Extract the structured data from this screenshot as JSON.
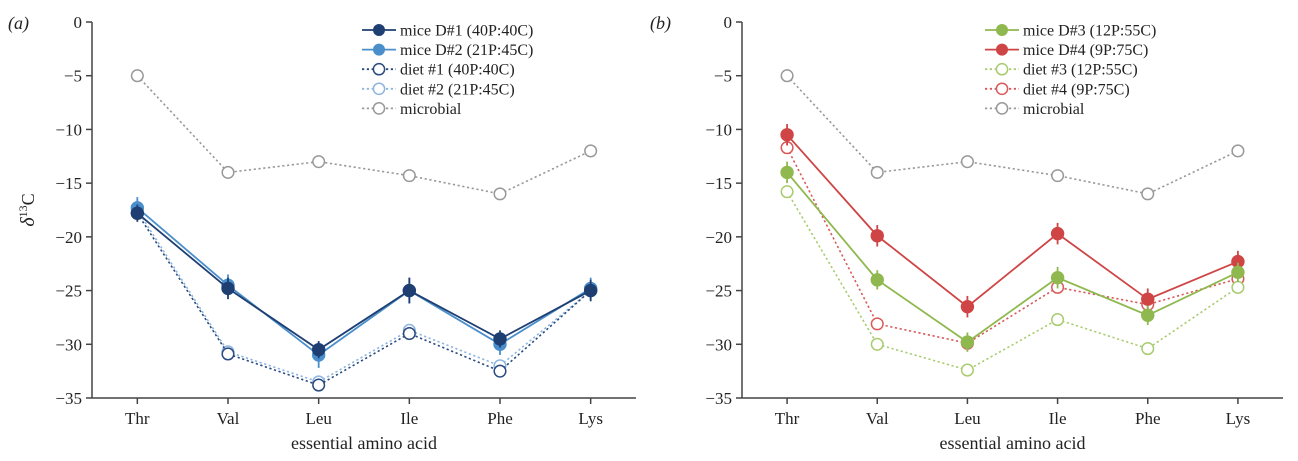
{
  "chart_data": [
    {
      "panel_label": "(a)",
      "type": "line",
      "ylabel": "δ13C",
      "ylabel_base": "δ",
      "ylabel_sup": "13",
      "ylabel_tail": "C",
      "xlabel": "essential amino acid",
      "categories": [
        "Thr",
        "Val",
        "Leu",
        "Ile",
        "Phe",
        "Lys"
      ],
      "ylim": [
        -35,
        0
      ],
      "yticks": [
        0,
        -5,
        -10,
        -15,
        -20,
        -25,
        -30,
        -35
      ],
      "ytick_labels": [
        "0",
        "−5",
        "−10",
        "−15",
        "−20",
        "−25",
        "−30",
        "−35"
      ],
      "legend_position": "top-right",
      "series": [
        {
          "name": "mice D#1 (40P:40C)",
          "values": [
            -17.8,
            -24.8,
            -30.5,
            -25.0,
            -29.5,
            -25.0
          ],
          "errors": [
            0.8,
            1.0,
            0.8,
            1.2,
            0.8,
            1.0
          ],
          "color": "#1f3f73",
          "style": "solid",
          "marker": "filled"
        },
        {
          "name": "mice D#2 (21P:45C)",
          "values": [
            -17.3,
            -24.5,
            -31.0,
            -25.0,
            -30.0,
            -24.8
          ],
          "errors": [
            1.0,
            1.0,
            1.2,
            1.2,
            1.0,
            1.0
          ],
          "color": "#4a8fcc",
          "style": "solid",
          "marker": "filled"
        },
        {
          "name": "diet #1 (40P:40C)",
          "values": [
            -17.8,
            -30.9,
            -33.8,
            -29.0,
            -32.5,
            -25.0
          ],
          "errors": [
            0.3,
            0.3,
            0.3,
            0.3,
            0.3,
            0.3
          ],
          "color": "#2a4a80",
          "style": "dotted",
          "marker": "open"
        },
        {
          "name": "diet #2 (21P:45C)",
          "values": [
            -17.5,
            -30.7,
            -33.5,
            -28.7,
            -32.0,
            -25.0
          ],
          "errors": [
            0.3,
            0.3,
            0.3,
            0.3,
            0.3,
            0.3
          ],
          "color": "#8db5de",
          "style": "dotted",
          "marker": "open"
        },
        {
          "name": "microbial",
          "values": [
            -5.0,
            -14.0,
            -13.0,
            -14.3,
            -16.0,
            -12.0
          ],
          "errors": [
            0,
            0,
            0,
            0,
            0,
            0
          ],
          "color": "#999999",
          "style": "dotted",
          "marker": "open"
        }
      ]
    },
    {
      "panel_label": "(b)",
      "type": "line",
      "xlabel": "essential amino acid",
      "categories": [
        "Thr",
        "Val",
        "Leu",
        "Ile",
        "Phe",
        "Lys"
      ],
      "ylim": [
        -35,
        0
      ],
      "yticks": [
        0,
        -5,
        -10,
        -15,
        -20,
        -25,
        -30,
        -35
      ],
      "ytick_labels": [
        "0",
        "−5",
        "−10",
        "−15",
        "−20",
        "−25",
        "−30",
        "−35"
      ],
      "legend_position": "top-right",
      "series": [
        {
          "name": "mice D#3 (12P:55C)",
          "values": [
            -14.0,
            -24.0,
            -29.8,
            -23.8,
            -27.3,
            -23.3
          ],
          "errors": [
            1.0,
            0.9,
            0.9,
            1.0,
            0.9,
            0.9
          ],
          "color": "#8fb84e",
          "style": "solid",
          "marker": "filled"
        },
        {
          "name": "mice D#4 (9P:75C)",
          "values": [
            -10.5,
            -19.9,
            -26.5,
            -19.7,
            -25.8,
            -22.3
          ],
          "errors": [
            1.0,
            1.0,
            1.0,
            1.0,
            1.0,
            1.0
          ],
          "color": "#cf4545",
          "style": "solid",
          "marker": "filled"
        },
        {
          "name": "diet #3 (12P:55C)",
          "values": [
            -15.8,
            -30.0,
            -32.4,
            -27.7,
            -30.4,
            -24.7
          ],
          "errors": [
            0.3,
            0.3,
            0.3,
            0.3,
            0.3,
            0.3
          ],
          "color": "#a9cc70",
          "style": "dotted",
          "marker": "open"
        },
        {
          "name": "diet #4 (9P:75C)",
          "values": [
            -11.7,
            -28.1,
            -29.9,
            -24.7,
            -26.3,
            -23.9
          ],
          "errors": [
            0.3,
            0.3,
            0.3,
            0.3,
            0.3,
            0.3
          ],
          "color": "#d95a5a",
          "style": "dotted",
          "marker": "open"
        },
        {
          "name": "microbial",
          "values": [
            -5.0,
            -14.0,
            -13.0,
            -14.3,
            -16.0,
            -12.0
          ],
          "errors": [
            0,
            0,
            0,
            0,
            0,
            0
          ],
          "color": "#999999",
          "style": "dotted",
          "marker": "open"
        }
      ]
    }
  ]
}
